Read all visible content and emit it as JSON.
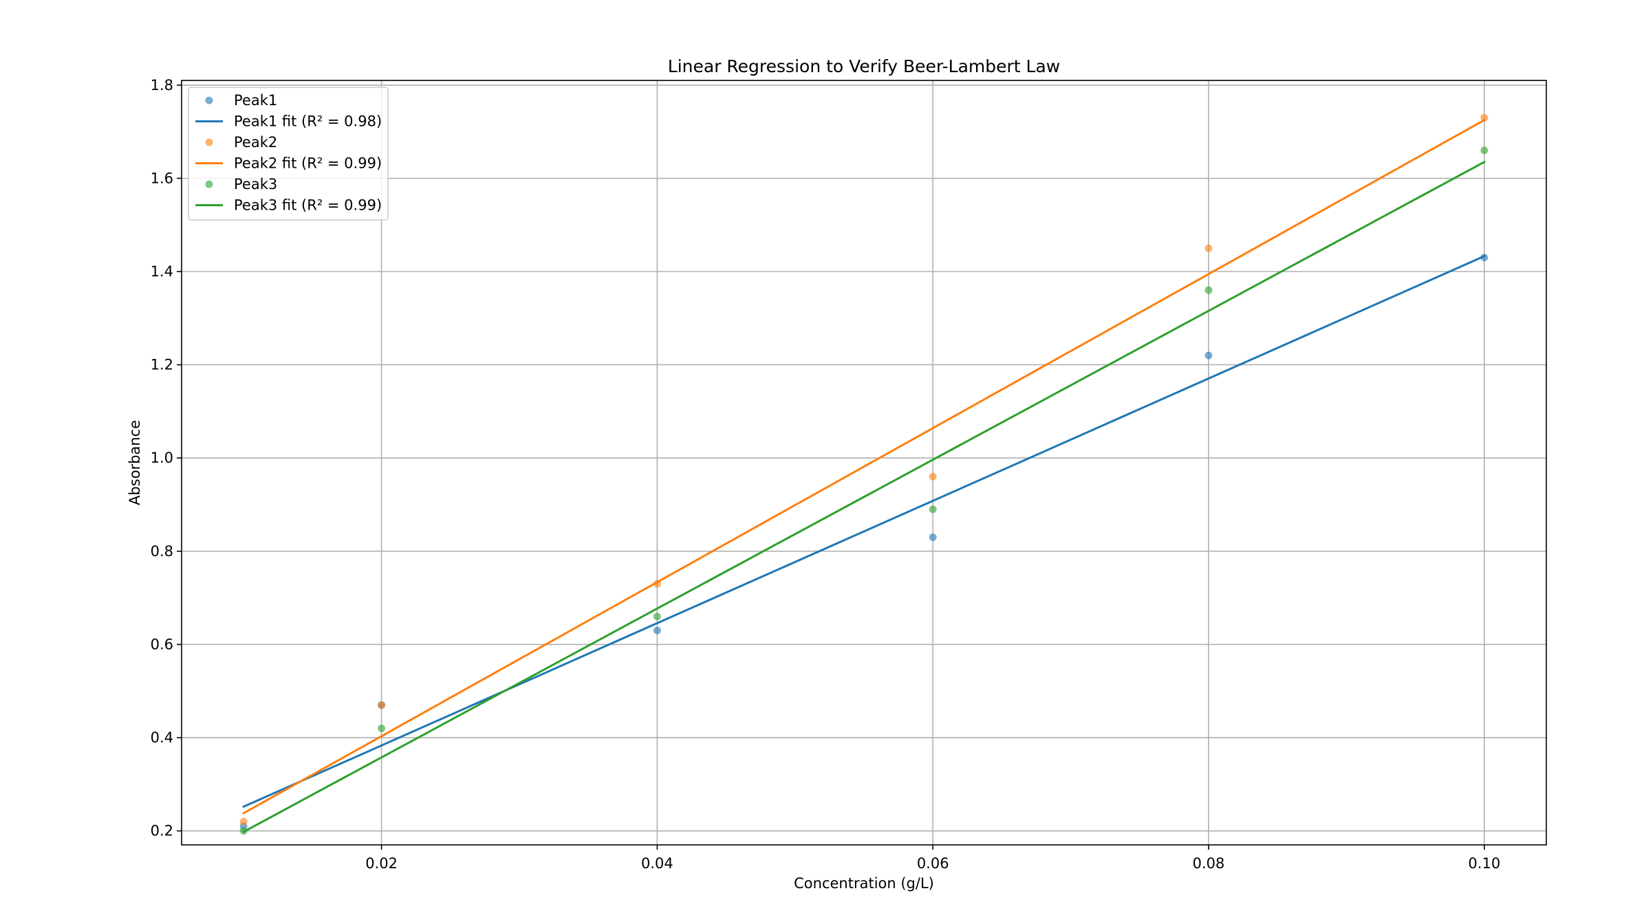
{
  "chart_data": {
    "type": "scatter",
    "title": "Linear Regression to Verify Beer-Lambert Law",
    "xlabel": "Concentration (g/L)",
    "ylabel": "Absorbance",
    "xlim": [
      0.0055,
      0.1045
    ],
    "ylim": [
      0.17,
      1.81
    ],
    "xticks": [
      0.02,
      0.04,
      0.06,
      0.08,
      0.1
    ],
    "xtick_labels": [
      "0.02",
      "0.04",
      "0.06",
      "0.08",
      "0.10"
    ],
    "yticks": [
      0.2,
      0.4,
      0.6,
      0.8,
      1.0,
      1.2,
      1.4,
      1.6,
      1.8
    ],
    "ytick_labels": [
      "0.2",
      "0.4",
      "0.6",
      "0.8",
      "1.0",
      "1.2",
      "1.4",
      "1.6",
      "1.8"
    ],
    "grid": true,
    "legend_position": "top-left",
    "x": [
      0.01,
      0.02,
      0.04,
      0.06,
      0.08,
      0.1
    ],
    "series": [
      {
        "name": "Peak1",
        "values": [
          0.21,
          0.47,
          0.63,
          0.83,
          1.22,
          1.43
        ],
        "color": "#1f77b4",
        "fit_label": "Peak1 fit (R² = 0.98)",
        "fit_line": [
          [
            0.01,
            0.252
          ],
          [
            0.1,
            1.433
          ]
        ]
      },
      {
        "name": "Peak2",
        "values": [
          0.22,
          0.47,
          0.73,
          0.96,
          1.45,
          1.73
        ],
        "color": "#ff7f0e",
        "fit_label": "Peak2 fit (R² = 0.99)",
        "fit_line": [
          [
            0.01,
            0.238
          ],
          [
            0.1,
            1.725
          ]
        ]
      },
      {
        "name": "Peak3",
        "values": [
          0.2,
          0.42,
          0.66,
          0.89,
          1.36,
          1.66
        ],
        "color": "#2ca02c",
        "fit_label": "Peak3 fit (R² = 0.99)",
        "fit_line": [
          [
            0.01,
            0.198
          ],
          [
            0.1,
            1.635
          ]
        ]
      }
    ]
  }
}
